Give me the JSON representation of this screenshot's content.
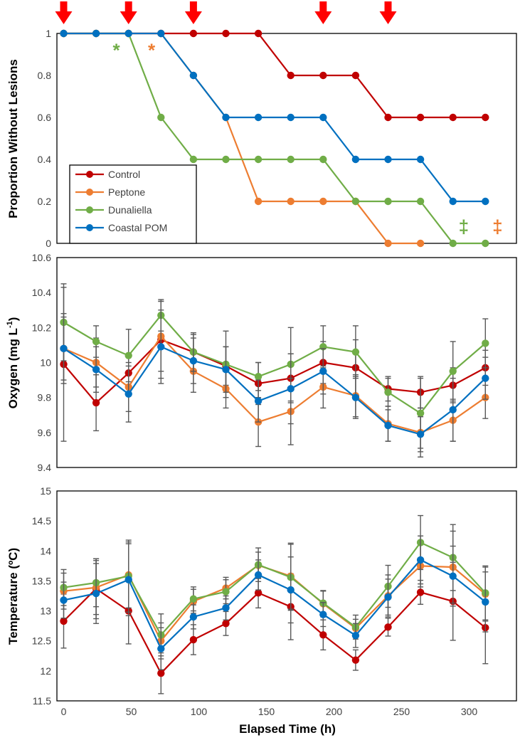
{
  "chart_data": [
    {
      "type": "line",
      "panel": "lesions",
      "ylabel": "Proportion Without Lesions",
      "ylim": [
        0,
        1
      ],
      "yticks": [
        0,
        0.2,
        0.4,
        0.6,
        0.8,
        1
      ],
      "ytick_labels": [
        "0",
        "0.2",
        "0.4",
        "0.6",
        "0.8",
        "1"
      ],
      "x": [
        0,
        24,
        48,
        72,
        96,
        120,
        144,
        168,
        192,
        216,
        240,
        264,
        288,
        312
      ],
      "series": [
        {
          "name": "Control",
          "color": "#C00000",
          "values": [
            1,
            1,
            1,
            1,
            1,
            1,
            1,
            0.8,
            0.8,
            0.8,
            0.6,
            0.6,
            0.6,
            0.6
          ]
        },
        {
          "name": "Peptone",
          "color": "#ED7D31",
          "values": [
            1,
            1,
            1,
            1,
            0.8,
            0.6,
            0.2,
            0.2,
            0.2,
            0.2,
            0,
            0,
            null,
            null
          ]
        },
        {
          "name": "Dunaliella",
          "color": "#70AD47",
          "values": [
            1,
            1,
            1,
            0.6,
            0.4,
            0.4,
            0.4,
            0.4,
            0.4,
            0.2,
            0.2,
            0.2,
            0,
            0
          ]
        },
        {
          "name": "Coastal POM",
          "color": "#0070C0",
          "values": [
            1,
            1,
            1,
            1,
            0.8,
            0.6,
            0.6,
            0.6,
            0.6,
            0.4,
            0.4,
            0.4,
            0.2,
            0.2
          ]
        }
      ],
      "arrows_at_x": [
        0,
        48,
        96,
        192,
        240
      ],
      "annotations": [
        {
          "text": "*",
          "x": 39,
          "y": 0.92,
          "color": "#70AD47"
        },
        {
          "text": "*",
          "x": 65,
          "y": 0.92,
          "color": "#ED7D31"
        },
        {
          "text": "‡",
          "x": 296,
          "y": 0.08,
          "color": "#70AD47"
        },
        {
          "text": "‡",
          "x": 321,
          "y": 0.08,
          "color": "#ED7D31"
        }
      ],
      "legend": {
        "placement": "lower-left",
        "entries": [
          "Control",
          "Peptone",
          "Dunaliella",
          "Coastal POM"
        ]
      }
    },
    {
      "type": "line",
      "panel": "oxygen",
      "ylabel": "Oxygen (mg L-1)",
      "ylabel_main": "Oxygen (mg L",
      "ylabel_sup": "-1",
      "ylabel_close": ")",
      "ylim": [
        9.4,
        10.6
      ],
      "yticks": [
        9.4,
        9.6,
        9.8,
        10,
        10.2,
        10.4,
        10.6
      ],
      "ytick_labels": [
        "9.4",
        "9.6",
        "9.8",
        "10",
        "10.2",
        "10.4",
        "10.6"
      ],
      "x": [
        0,
        24,
        48,
        72,
        96,
        120,
        144,
        168,
        192,
        216,
        240,
        264,
        288,
        312
      ],
      "series": [
        {
          "name": "Control",
          "color": "#C00000",
          "values": [
            9.99,
            9.77,
            9.94,
            10.13,
            10.06,
            9.98,
            9.88,
            9.91,
            10.0,
            9.97,
            9.85,
            9.83,
            9.87,
            9.97
          ],
          "errors": [
            0.44,
            0.16,
            0.11,
            0.22,
            0.1,
            0.11,
            0.12,
            0.14,
            0.12,
            0.16,
            0.07,
            0.09,
            0.1,
            0.1
          ]
        },
        {
          "name": "Peptone",
          "color": "#ED7D31",
          "values": [
            10.08,
            10.0,
            9.86,
            10.15,
            9.95,
            9.85,
            9.66,
            9.72,
            9.86,
            9.81,
            9.65,
            9.6,
            9.67,
            9.8
          ],
          "errors": [
            0.2,
            0.14,
            0.14,
            0.2,
            0.12,
            0.11,
            0.14,
            0.19,
            0.12,
            0.12,
            0.1,
            0.14,
            0.12,
            0.12
          ]
        },
        {
          "name": "Dunaliella",
          "color": "#70AD47",
          "values": [
            10.23,
            10.12,
            10.04,
            10.27,
            10.06,
            9.99,
            9.92,
            9.99,
            10.09,
            10.06,
            9.83,
            9.71,
            9.95,
            10.11
          ],
          "errors": [
            0.22,
            0.09,
            0.15,
            0.09,
            0.11,
            0.19,
            0.08,
            0.21,
            0.12,
            0.15,
            0.08,
            0.2,
            0.17,
            0.14
          ]
        },
        {
          "name": "Coastal POM",
          "color": "#0070C0",
          "values": [
            10.08,
            9.96,
            9.82,
            10.09,
            10.01,
            9.96,
            9.78,
            9.85,
            9.95,
            9.8,
            9.64,
            9.59,
            9.73,
            9.91
          ],
          "errors": [
            0.18,
            0.13,
            0.16,
            0.21,
            0.13,
            0.13,
            0.12,
            0.2,
            0.13,
            0.12,
            0.09,
            0.1,
            0.18,
            0.12
          ]
        }
      ]
    },
    {
      "type": "line",
      "panel": "temperature",
      "ylabel": "Temperature (ºC)",
      "ylim": [
        11.5,
        15
      ],
      "yticks": [
        11.5,
        12,
        12.5,
        13,
        13.5,
        14,
        14.5,
        15
      ],
      "ytick_labels": [
        "11.5",
        "12",
        "12.5",
        "13",
        "13.5",
        "14",
        "14.5",
        "15"
      ],
      "xlabel": "Elapsed Time (h)",
      "xlim": [
        -5,
        335
      ],
      "xticks": [
        0,
        50,
        100,
        150,
        200,
        250,
        300
      ],
      "xtick_labels": [
        "0",
        "50",
        "100",
        "150",
        "200",
        "250",
        "300"
      ],
      "x": [
        0,
        24,
        48,
        72,
        96,
        120,
        144,
        168,
        192,
        216,
        240,
        264,
        288,
        312
      ],
      "series": [
        {
          "name": "Control",
          "color": "#C00000",
          "values": [
            12.83,
            13.37,
            13.0,
            11.96,
            12.52,
            12.79,
            13.3,
            13.07,
            12.6,
            12.18,
            12.73,
            13.31,
            13.16,
            12.72
          ],
          "errors": [
            0.45,
            0.5,
            0.55,
            0.34,
            0.25,
            0.2,
            0.25,
            0.55,
            0.25,
            0.17,
            0.15,
            0.2,
            0.65,
            0.6
          ]
        },
        {
          "name": "Peptone",
          "color": "#ED7D31",
          "values": [
            13.33,
            13.39,
            13.6,
            12.5,
            13.16,
            13.38,
            13.76,
            13.58,
            13.12,
            12.71,
            13.25,
            13.75,
            13.73,
            13.28
          ],
          "errors": [
            0.3,
            0.45,
            0.55,
            0.3,
            0.2,
            0.18,
            0.22,
            0.55,
            0.22,
            0.15,
            0.35,
            0.35,
            0.6,
            0.45
          ]
        },
        {
          "name": "Dunaliella",
          "color": "#70AD47",
          "values": [
            13.39,
            13.47,
            13.58,
            12.6,
            13.2,
            13.32,
            13.77,
            13.56,
            13.13,
            12.73,
            13.41,
            14.14,
            13.89,
            13.3
          ],
          "errors": [
            0.3,
            0.4,
            0.6,
            0.35,
            0.2,
            0.2,
            0.28,
            0.55,
            0.2,
            0.2,
            0.35,
            0.45,
            0.55,
            0.45
          ]
        },
        {
          "name": "Coastal POM",
          "color": "#0070C0",
          "values": [
            13.18,
            13.29,
            13.52,
            12.37,
            12.9,
            13.05,
            13.6,
            13.35,
            12.94,
            12.59,
            13.23,
            13.85,
            13.58,
            13.15
          ],
          "errors": [
            0.3,
            0.5,
            0.6,
            0.35,
            0.2,
            0.2,
            0.25,
            0.55,
            0.2,
            0.2,
            0.3,
            0.4,
            0.5,
            0.5
          ]
        }
      ]
    }
  ]
}
